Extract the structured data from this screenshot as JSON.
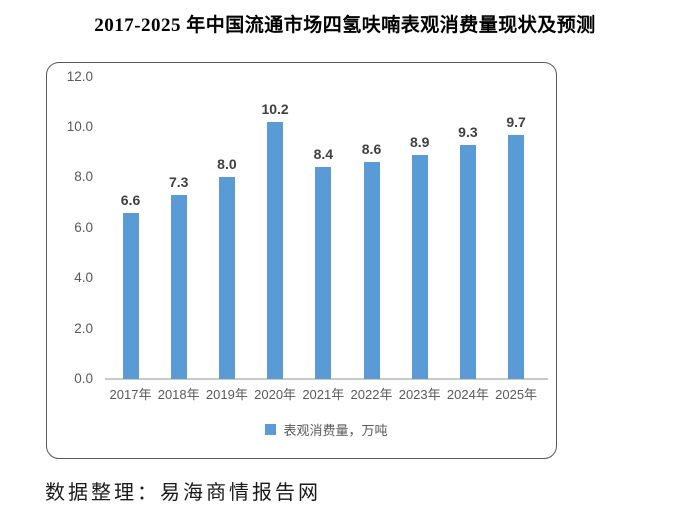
{
  "title": "2017-2025 年中国流通市场四氢呋喃表观消费量现状及预测",
  "footer": {
    "text": "数据整理：易海商情报告网"
  },
  "colors": {
    "bar": "#5b9bd5",
    "axis_line": "#c9c9c9",
    "tick_label": "#595959",
    "value_label": "#404040",
    "frame_border": "#595959"
  },
  "chart_data": {
    "type": "bar",
    "title": "2017-2025 年中国流通市场四氢呋喃表观消费量现状及预测",
    "categories": [
      "2017年",
      "2018年",
      "2019年",
      "2020年",
      "2021年",
      "2022年",
      "2023年",
      "2024年",
      "2025年"
    ],
    "series": [
      {
        "name": "表观消费量，万吨",
        "values": [
          6.6,
          7.3,
          8.0,
          10.2,
          8.4,
          8.6,
          8.9,
          9.3,
          9.7
        ]
      }
    ],
    "value_labels": [
      "6.6",
      "7.3",
      "8.0",
      "10.2",
      "8.4",
      "8.6",
      "8.9",
      "9.3",
      "9.7"
    ],
    "yticks": [
      "0.0",
      "2.0",
      "4.0",
      "6.0",
      "8.0",
      "10.0",
      "12.0"
    ],
    "ytick_values": [
      0,
      2,
      4,
      6,
      8,
      10,
      12
    ],
    "ylim": [
      0,
      12
    ],
    "xlabel": "",
    "ylabel": "",
    "grid": false,
    "legend_position": "bottom"
  }
}
